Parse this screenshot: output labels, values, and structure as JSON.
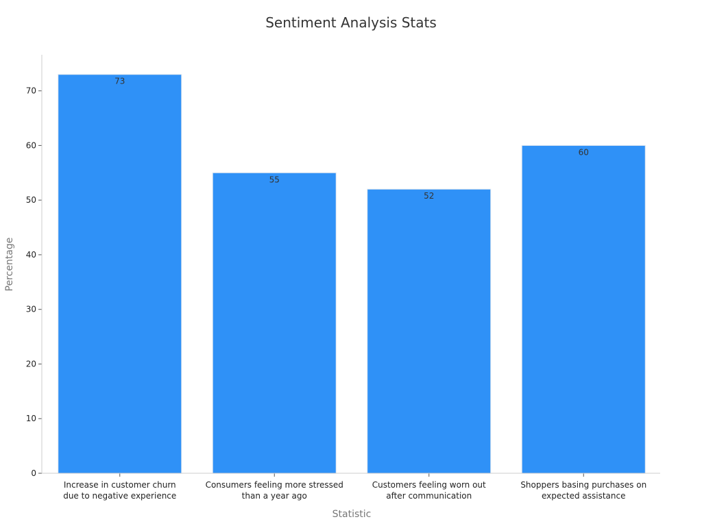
{
  "chart_data": {
    "type": "bar",
    "title": "Sentiment Analysis Stats",
    "xlabel": "Statistic",
    "ylabel": "Percentage",
    "categories": [
      [
        "Increase in customer churn",
        "due to negative experience"
      ],
      [
        "Consumers feeling more stressed",
        "than a year ago"
      ],
      [
        "Customers feeling worn out",
        "after communication"
      ],
      [
        "Shoppers basing purchases on",
        "expected assistance"
      ]
    ],
    "values": [
      73,
      55,
      52,
      60
    ],
    "ylim": [
      0,
      76.6
    ],
    "yticks": [
      0,
      10,
      20,
      30,
      40,
      50,
      60,
      70
    ],
    "grid": false,
    "legend": "none",
    "bar_color": "#2f91f7",
    "bar_edge_color": "#dde6ef",
    "axis_color": "#cccccc"
  }
}
